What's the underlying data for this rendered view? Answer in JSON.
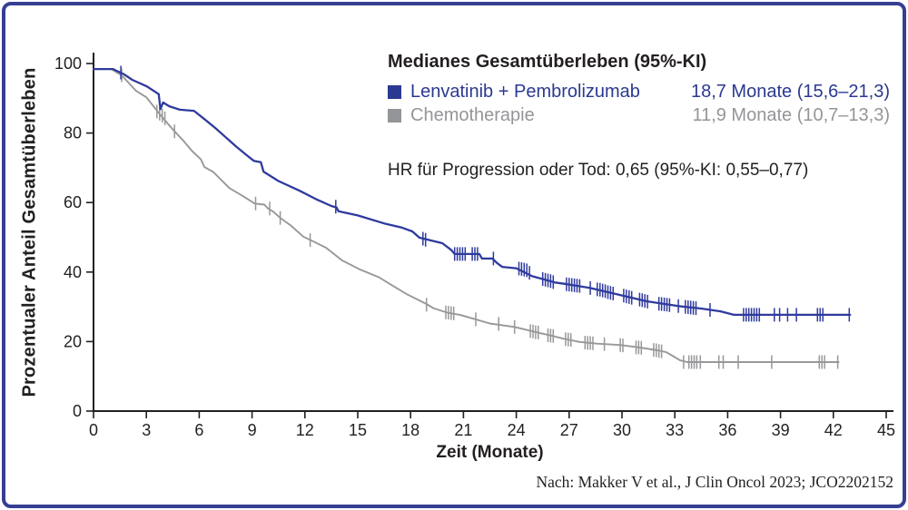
{
  "figure": {
    "border_color": "#363f92",
    "legend": {
      "title": "Medianes Gesamtüberleben (95%-KI)",
      "entries": [
        {
          "label": "Lenvatinib + Pembrolizumab",
          "value": "18,7 Monate (15,6–21,3)",
          "color": "#2b3990"
        },
        {
          "label": "Chemotherapie",
          "value": "11,9 Monate (10,7–13,3)",
          "color": "#939598"
        }
      ]
    },
    "hr_text": "HR für Progression oder Tod: 0,65 (95%-KI: 0,55–0,77)",
    "citation": "Nach: Makker V et al., J Clin Oncol 2023; JCO2202152"
  },
  "chart_data": {
    "type": "line",
    "subtype": "kaplan-meier-survival",
    "title": "Medianes Gesamtüberleben (95%-KI)",
    "xlabel": "Zeit (Monate)",
    "ylabel": "Prozentualer Anteil Gesamtüberleben",
    "xlim": [
      0,
      45
    ],
    "ylim": [
      0,
      100
    ],
    "x_ticks": [
      0,
      3,
      6,
      9,
      12,
      15,
      18,
      21,
      24,
      27,
      30,
      33,
      36,
      39,
      42,
      45
    ],
    "y_ticks": [
      0,
      20,
      40,
      60,
      80,
      100
    ],
    "grid": false,
    "legend_position": "top-right",
    "axis_color": "#231f20",
    "series": [
      {
        "name": "Chemotherapie",
        "color": "#98989a",
        "median_label": "11,9 Monate (10,7–13,3)",
        "points": [
          [
            0,
            98.4
          ],
          [
            1.0,
            98.4
          ],
          [
            1.6,
            96.6
          ],
          [
            2.4,
            92.2
          ],
          [
            3.0,
            90.3
          ],
          [
            3.7,
            85.8
          ],
          [
            4.1,
            83.4
          ],
          [
            4.6,
            80.5
          ],
          [
            5.1,
            77.8
          ],
          [
            5.6,
            74.8
          ],
          [
            6.1,
            72.4
          ],
          [
            6.3,
            70.2
          ],
          [
            6.8,
            68.8
          ],
          [
            7.7,
            64.2
          ],
          [
            8.5,
            61.8
          ],
          [
            9.0,
            60.2
          ],
          [
            9.15,
            59.7
          ],
          [
            9.7,
            59.4
          ],
          [
            9.9,
            58.3
          ],
          [
            10.2,
            57.4
          ],
          [
            10.6,
            55.6
          ],
          [
            11.2,
            53.4
          ],
          [
            11.9,
            50.2
          ],
          [
            12.4,
            49.0
          ],
          [
            13.2,
            47.0
          ],
          [
            14.1,
            43.4
          ],
          [
            15.1,
            40.8
          ],
          [
            16.2,
            38.5
          ],
          [
            17.0,
            36.0
          ],
          [
            17.8,
            33.6
          ],
          [
            18.9,
            30.8
          ],
          [
            19.3,
            29.6
          ],
          [
            20.1,
            28.3
          ],
          [
            20.8,
            27.7
          ],
          [
            21.7,
            26.4
          ],
          [
            22.5,
            25.2
          ],
          [
            23.9,
            24.2
          ],
          [
            25.3,
            22.5
          ],
          [
            26.0,
            21.7
          ],
          [
            26.7,
            20.8
          ],
          [
            27.6,
            19.9
          ],
          [
            28.6,
            19.4
          ],
          [
            29.9,
            19.0
          ],
          [
            31.0,
            18.3
          ],
          [
            32.0,
            17.5
          ],
          [
            32.5,
            17.0
          ],
          [
            32.9,
            15.8
          ],
          [
            33.3,
            14.6
          ],
          [
            33.7,
            14.1
          ],
          [
            42.3,
            14.1
          ]
        ],
        "censors": [
          [
            1.6,
            96.6
          ],
          [
            3.6,
            86.2
          ],
          [
            3.75,
            85.6
          ],
          [
            3.9,
            85.0
          ],
          [
            4.05,
            84.2
          ],
          [
            4.6,
            80.5
          ],
          [
            9.2,
            59.7
          ],
          [
            10.0,
            58.3
          ],
          [
            10.6,
            55.6
          ],
          [
            12.3,
            49.2
          ],
          [
            18.9,
            30.6
          ],
          [
            20.0,
            28.4
          ],
          [
            20.15,
            28.3
          ],
          [
            20.3,
            28.2
          ],
          [
            20.45,
            28.1
          ],
          [
            21.7,
            26.4
          ],
          [
            23.0,
            25.1
          ],
          [
            23.9,
            24.2
          ],
          [
            24.8,
            23.0
          ],
          [
            24.95,
            22.9
          ],
          [
            25.1,
            22.7
          ],
          [
            25.25,
            22.6
          ],
          [
            25.8,
            21.8
          ],
          [
            25.95,
            21.7
          ],
          [
            26.1,
            21.6
          ],
          [
            26.8,
            20.7
          ],
          [
            26.95,
            20.6
          ],
          [
            27.1,
            20.5
          ],
          [
            27.9,
            19.7
          ],
          [
            28.05,
            19.6
          ],
          [
            28.2,
            19.6
          ],
          [
            28.35,
            19.5
          ],
          [
            29.0,
            19.3
          ],
          [
            29.9,
            19.0
          ],
          [
            30.05,
            18.9
          ],
          [
            30.8,
            18.3
          ],
          [
            30.95,
            18.3
          ],
          [
            31.1,
            18.2
          ],
          [
            31.8,
            17.6
          ],
          [
            31.95,
            17.5
          ],
          [
            32.1,
            17.3
          ],
          [
            32.25,
            17.2
          ],
          [
            33.5,
            14.1
          ],
          [
            33.8,
            14.1
          ],
          [
            33.95,
            14.1
          ],
          [
            34.1,
            14.1
          ],
          [
            34.25,
            14.1
          ],
          [
            34.45,
            14.1
          ],
          [
            35.5,
            14.1
          ],
          [
            35.75,
            14.1
          ],
          [
            36.6,
            14.1
          ],
          [
            38.5,
            14.1
          ],
          [
            41.2,
            14.1
          ],
          [
            41.35,
            14.1
          ],
          [
            41.5,
            14.1
          ],
          [
            42.25,
            14.1
          ]
        ]
      },
      {
        "name": "Lenvatinib + Pembrolizumab",
        "color": "#2f3a9e",
        "median_label": "18,7 Monate (15,6–21,3)",
        "points": [
          [
            0,
            98.4
          ],
          [
            1.1,
            98.4
          ],
          [
            1.7,
            97.0
          ],
          [
            2.2,
            95.3
          ],
          [
            3.0,
            93.5
          ],
          [
            3.7,
            91.2
          ],
          [
            3.8,
            86.9
          ],
          [
            3.95,
            88.8
          ],
          [
            4.3,
            87.7
          ],
          [
            4.9,
            86.7
          ],
          [
            5.7,
            86.4
          ],
          [
            6.3,
            84.0
          ],
          [
            6.9,
            81.5
          ],
          [
            7.5,
            78.8
          ],
          [
            8.1,
            76.1
          ],
          [
            8.7,
            73.6
          ],
          [
            9.1,
            72.0
          ],
          [
            9.5,
            71.6
          ],
          [
            9.65,
            68.9
          ],
          [
            10.5,
            66.2
          ],
          [
            11.7,
            63.4
          ],
          [
            12.7,
            60.8
          ],
          [
            13.5,
            59.0
          ],
          [
            13.8,
            58.6
          ],
          [
            13.9,
            57.5
          ],
          [
            15.0,
            56.3
          ],
          [
            16.5,
            54.0
          ],
          [
            17.5,
            52.8
          ],
          [
            18.1,
            51.7
          ],
          [
            18.5,
            49.9
          ],
          [
            19.8,
            48.3
          ],
          [
            20.3,
            46.4
          ],
          [
            20.5,
            45.2
          ],
          [
            21.9,
            45.2
          ],
          [
            22.05,
            43.9
          ],
          [
            22.65,
            43.9
          ],
          [
            22.9,
            42.6
          ],
          [
            23.2,
            41.5
          ],
          [
            24.0,
            41.1
          ],
          [
            24.9,
            38.8
          ],
          [
            25.5,
            38.0
          ],
          [
            26.2,
            37.0
          ],
          [
            26.9,
            36.5
          ],
          [
            28.2,
            35.4
          ],
          [
            29.9,
            33.4
          ],
          [
            31.4,
            31.6
          ],
          [
            33.2,
            30.2
          ],
          [
            34.5,
            29.5
          ],
          [
            35.6,
            28.7
          ],
          [
            36.35,
            27.7
          ],
          [
            42.95,
            27.7
          ]
        ],
        "censors": [
          [
            1.55,
            97.4
          ],
          [
            13.75,
            58.8
          ],
          [
            18.7,
            49.6
          ],
          [
            18.85,
            49.3
          ],
          [
            20.5,
            45.2
          ],
          [
            20.65,
            45.2
          ],
          [
            20.8,
            45.2
          ],
          [
            20.95,
            45.2
          ],
          [
            21.1,
            45.2
          ],
          [
            21.5,
            45.2
          ],
          [
            21.65,
            45.2
          ],
          [
            21.8,
            45.2
          ],
          [
            22.7,
            43.9
          ],
          [
            24.15,
            41.0
          ],
          [
            24.3,
            40.9
          ],
          [
            24.45,
            40.7
          ],
          [
            24.6,
            40.5
          ],
          [
            24.75,
            39.8
          ],
          [
            25.5,
            38.0
          ],
          [
            25.65,
            37.8
          ],
          [
            25.8,
            37.6
          ],
          [
            25.95,
            37.4
          ],
          [
            26.1,
            37.1
          ],
          [
            26.85,
            36.5
          ],
          [
            27.0,
            36.4
          ],
          [
            27.15,
            36.3
          ],
          [
            27.3,
            36.2
          ],
          [
            27.45,
            36.1
          ],
          [
            27.6,
            36.0
          ],
          [
            28.2,
            35.4
          ],
          [
            28.6,
            35.0
          ],
          [
            28.75,
            34.9
          ],
          [
            28.9,
            34.7
          ],
          [
            29.05,
            34.5
          ],
          [
            29.2,
            34.2
          ],
          [
            29.35,
            34.0
          ],
          [
            29.5,
            33.8
          ],
          [
            30.1,
            33.2
          ],
          [
            30.25,
            33.0
          ],
          [
            30.4,
            32.8
          ],
          [
            30.55,
            32.6
          ],
          [
            31.0,
            32.1
          ],
          [
            31.15,
            31.9
          ],
          [
            31.3,
            31.7
          ],
          [
            31.45,
            31.5
          ],
          [
            32.1,
            30.9
          ],
          [
            32.25,
            30.8
          ],
          [
            32.4,
            30.7
          ],
          [
            32.55,
            30.6
          ],
          [
            32.7,
            30.5
          ],
          [
            33.2,
            30.2
          ],
          [
            33.6,
            30.0
          ],
          [
            33.75,
            29.9
          ],
          [
            33.9,
            29.8
          ],
          [
            34.05,
            29.7
          ],
          [
            34.2,
            29.6
          ],
          [
            35.0,
            29.1
          ],
          [
            36.9,
            27.7
          ],
          [
            37.05,
            27.7
          ],
          [
            37.2,
            27.7
          ],
          [
            37.35,
            27.7
          ],
          [
            37.5,
            27.7
          ],
          [
            37.65,
            27.7
          ],
          [
            37.8,
            27.7
          ],
          [
            38.65,
            27.7
          ],
          [
            38.95,
            27.7
          ],
          [
            39.4,
            27.7
          ],
          [
            39.9,
            27.7
          ],
          [
            41.1,
            27.7
          ],
          [
            41.25,
            27.7
          ],
          [
            41.4,
            27.7
          ],
          [
            42.9,
            27.7
          ]
        ]
      }
    ]
  }
}
